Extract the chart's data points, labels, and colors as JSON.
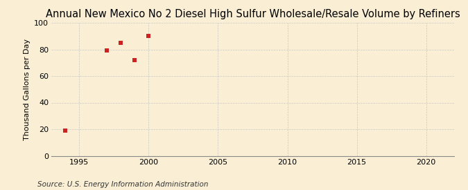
{
  "title": "Annual New Mexico No 2 Diesel High Sulfur Wholesale/Resale Volume by Refiners",
  "ylabel": "Thousand Gallons per Day",
  "source": "Source: U.S. Energy Information Administration",
  "x_data": [
    1994,
    1997,
    1998,
    1999,
    2000
  ],
  "y_data": [
    19,
    79,
    85,
    72,
    90
  ],
  "marker_color": "#cc2222",
  "marker": "s",
  "marker_size": 4.5,
  "xlim": [
    1993,
    2022
  ],
  "ylim": [
    0,
    100
  ],
  "xticks": [
    1995,
    2000,
    2005,
    2010,
    2015,
    2020
  ],
  "yticks": [
    0,
    20,
    40,
    60,
    80,
    100
  ],
  "background_color": "#faefd4",
  "grid_color": "#c8c8c8",
  "title_fontsize": 10.5,
  "label_fontsize": 8,
  "tick_fontsize": 8,
  "source_fontsize": 7.5
}
